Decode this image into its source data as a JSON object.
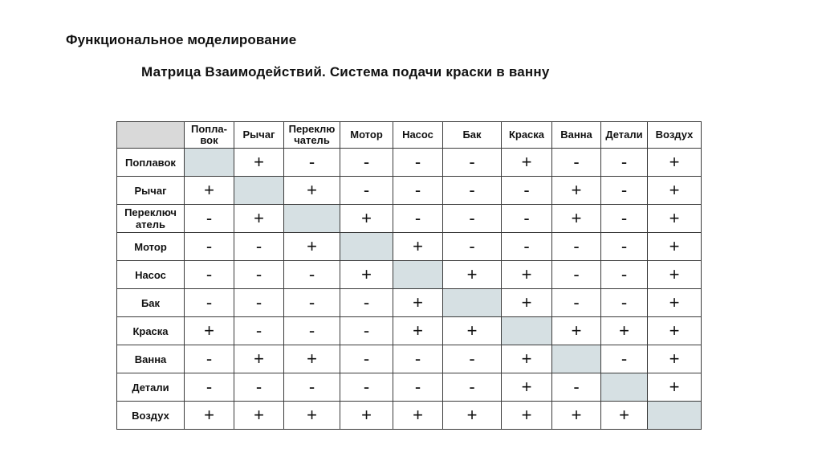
{
  "slide": {
    "title": "Функциональное моделирование",
    "subtitle": "Матрица Взаимодействий. Система подачи краски в ванну"
  },
  "matrix": {
    "columns": [
      "Попла-\nвок",
      "Рычаг",
      "Переклю\nчатель",
      "Мотор",
      "Насос",
      "Бак",
      "Краска",
      "Ванна",
      "Детали",
      "Воздух"
    ],
    "rows": [
      {
        "label": "Поплавок",
        "cells": [
          "",
          "+",
          "-",
          "-",
          "-",
          "-",
          "+",
          "-",
          "-",
          "+"
        ]
      },
      {
        "label": "Рычаг",
        "cells": [
          "+",
          "",
          "+",
          "-",
          "-",
          "-",
          "-",
          "+",
          "-",
          "+"
        ]
      },
      {
        "label": "Переключ\nатель",
        "cells": [
          "-",
          "+",
          "",
          "+",
          "-",
          "-",
          "-",
          "+",
          "-",
          "+"
        ]
      },
      {
        "label": "Мотор",
        "cells": [
          "-",
          "-",
          "+",
          "",
          "+",
          "-",
          "-",
          "-",
          "-",
          "+"
        ]
      },
      {
        "label": "Насос",
        "cells": [
          "-",
          "-",
          "-",
          "+",
          "",
          "+",
          "+",
          "-",
          "-",
          "+"
        ]
      },
      {
        "label": "Бак",
        "cells": [
          "-",
          "-",
          "-",
          "-",
          "+",
          "",
          "+",
          "-",
          "-",
          "+"
        ]
      },
      {
        "label": "Краска",
        "cells": [
          "+",
          "-",
          "-",
          "-",
          "+",
          "+",
          "",
          "+",
          "+",
          "+"
        ]
      },
      {
        "label": "Ванна",
        "cells": [
          "-",
          "+",
          "+",
          "-",
          "-",
          "-",
          "+",
          "",
          "-",
          "+"
        ]
      },
      {
        "label": "Детали",
        "cells": [
          "-",
          "-",
          "-",
          "-",
          "-",
          "-",
          "+",
          "-",
          "",
          "+"
        ]
      },
      {
        "label": "Воздух",
        "cells": [
          "+",
          "+",
          "+",
          "+",
          "+",
          "+",
          "+",
          "+",
          "+",
          ""
        ]
      }
    ],
    "diagonal_color": "#d6e0e3",
    "corner_color": "#d9d9d9"
  }
}
